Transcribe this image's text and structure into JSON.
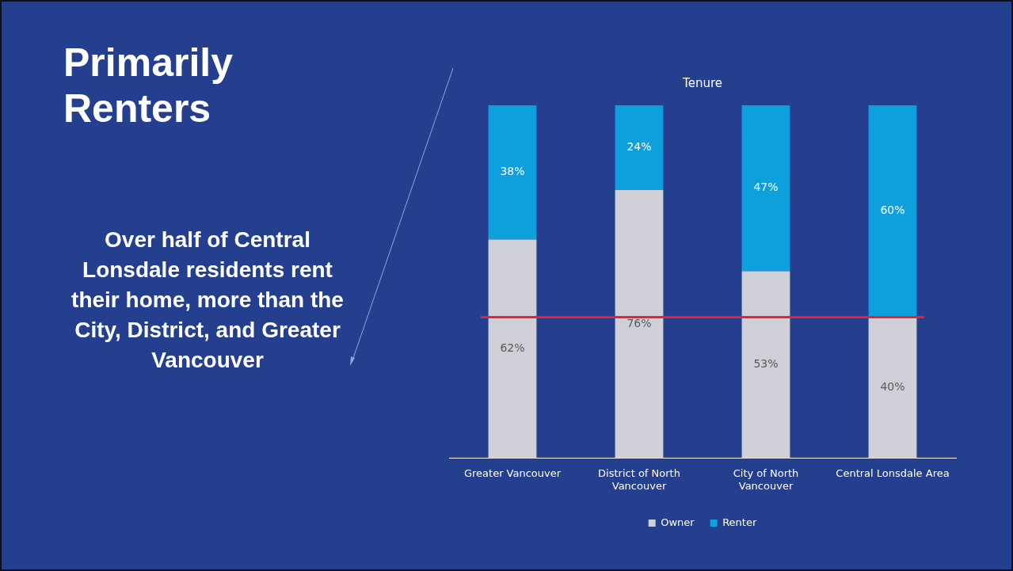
{
  "chart_data": {
    "type": "bar",
    "title": "Tenure",
    "annotations": [
      "Primarily Renters",
      "Over half of Central Lonsdale residents rent their home, more than the City, District, and Greater Vancouver"
    ],
    "categories": [
      "Greater Vancouver",
      "District of North Vancouver",
      "City of North Vancouver",
      "Central Lonsdale Area"
    ],
    "series": [
      {
        "name": "Owner",
        "color": "#cfcfd7",
        "values": [
          62,
          76,
          53,
          40
        ],
        "value_labels": [
          "62%",
          "76%",
          "53%",
          "40%"
        ]
      },
      {
        "name": "Renter",
        "color": "#0ea0dc",
        "values": [
          38,
          24,
          47,
          60
        ],
        "value_labels": [
          "38%",
          "24%",
          "47%",
          "60%"
        ]
      }
    ],
    "stacked": true,
    "legend": "bottom",
    "grid": false,
    "ref_lines": [
      {
        "axis": "y",
        "value": 40,
        "color": "#e8213a"
      }
    ]
  }
}
